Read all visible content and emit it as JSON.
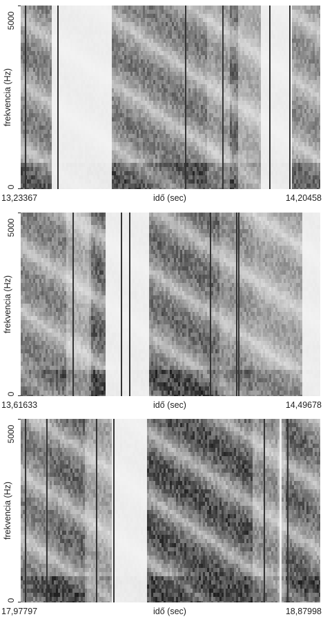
{
  "chart_data": [
    {
      "type": "heatmap",
      "xlabel": "idő (sec)",
      "ylabel": "frekvencia (Hz)",
      "x_start": "13,23367",
      "x_end": "14,20458",
      "y_ticks": [
        "0",
        "5000"
      ],
      "ylim": [
        0,
        5000
      ],
      "colormap": "grayscale"
    },
    {
      "type": "heatmap",
      "xlabel": "idő (sec)",
      "ylabel": "frekvencia (Hz)",
      "x_start": "13,61633",
      "x_end": "14,49678",
      "y_ticks": [
        "0",
        "5000"
      ],
      "ylim": [
        0,
        5000
      ],
      "colormap": "grayscale"
    },
    {
      "type": "heatmap",
      "xlabel": "idő (sec)",
      "ylabel": "frekvencia (Hz)",
      "x_start": "17,97797",
      "x_end": "18,87998",
      "y_ticks": [
        "0",
        "5000"
      ],
      "ylim": [
        0,
        5000
      ],
      "colormap": "grayscale"
    }
  ]
}
